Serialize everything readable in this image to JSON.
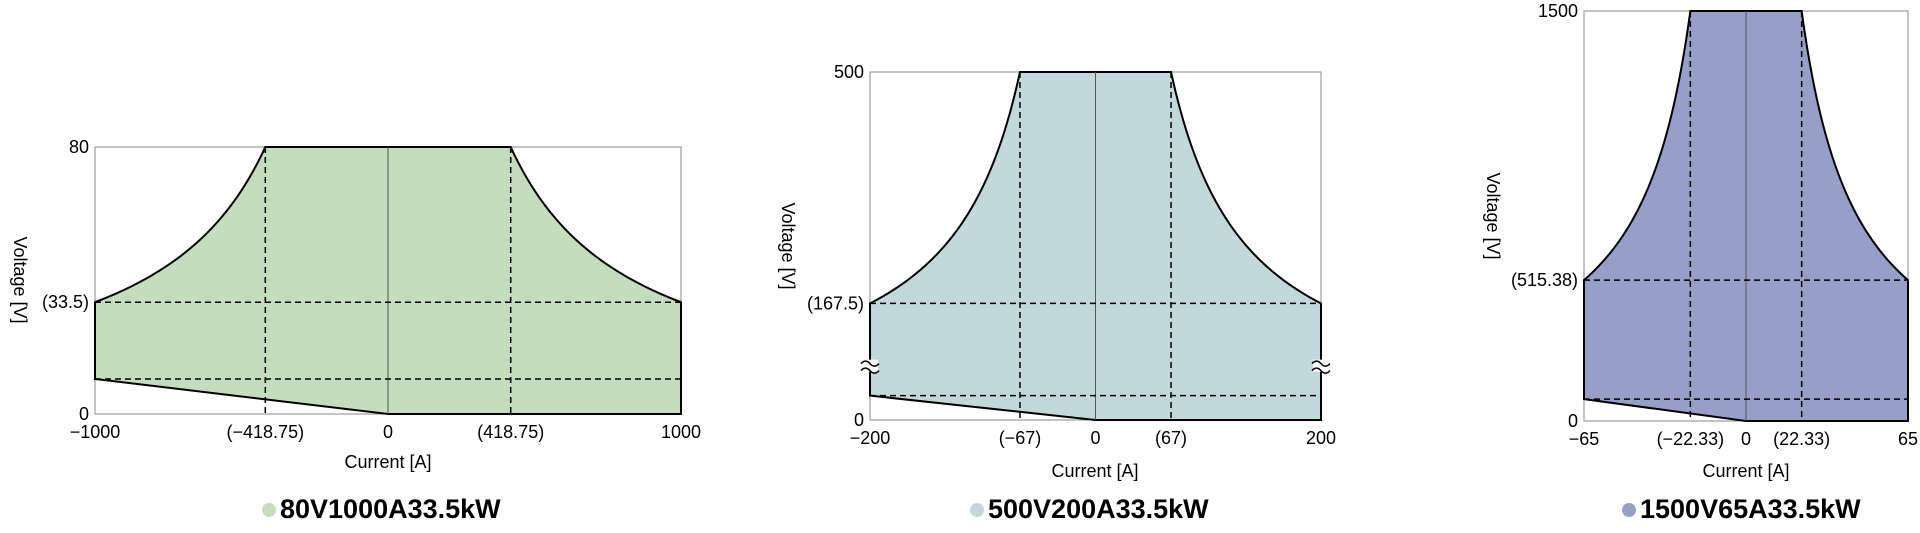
{
  "chart_data": [
    {
      "type": "area",
      "title": "80V1000A33.5kW",
      "color": "#c5ddbc",
      "xlabel": "Current [A]",
      "ylabel": "Voltage [V]",
      "xlim": [
        -1000,
        1000
      ],
      "ylim": [
        0,
        80
      ],
      "rated_power_kw": 33.5,
      "x_tick_labels": [
        "−1000",
        "(−418.75)",
        "0",
        "(418.75)",
        "1000"
      ],
      "x_ticks": [
        -1000,
        -418.75,
        0,
        418.75,
        1000
      ],
      "y_tick_labels": [
        "0",
        "(33.5)",
        "80"
      ],
      "y_ticks": [
        0,
        33.5,
        80
      ],
      "lower_boundary": [
        [
          -1000,
          10.5
        ],
        [
          0,
          0
        ]
      ],
      "lower_dashed_y": 10.5,
      "axis_break": false
    },
    {
      "type": "area",
      "title": "500V200A33.5kW",
      "color": "#c2d9dc",
      "xlabel": "Current [A]",
      "ylabel": "Voltage [V]",
      "xlim": [
        -200,
        200
      ],
      "ylim": [
        0,
        500
      ],
      "rated_power_kw": 33.5,
      "x_tick_labels": [
        "−200",
        "(−67)",
        "0",
        "(67)",
        "200"
      ],
      "x_ticks": [
        -200,
        -67,
        0,
        67,
        200
      ],
      "y_tick_labels": [
        "0",
        "(167.5)",
        "500"
      ],
      "y_ticks": [
        0,
        167.5,
        500
      ],
      "lower_boundary": [
        [
          -200,
          35
        ],
        [
          0,
          0
        ]
      ],
      "lower_dashed_y": 35,
      "axis_break": true
    },
    {
      "type": "area",
      "title": "1500V65A33.5kW",
      "color": "#979fc9",
      "xlabel": "Current [A]",
      "ylabel": "Voltage [V]",
      "xlim": [
        -65,
        65
      ],
      "ylim": [
        0,
        1500
      ],
      "rated_power_kw": 33.5,
      "x_tick_labels": [
        "−65",
        "(−22.33)",
        "0",
        "(22.33)",
        "65"
      ],
      "x_ticks": [
        -65,
        -22.33,
        0,
        22.33,
        65
      ],
      "y_tick_labels": [
        "0",
        "(515.38)",
        "1500"
      ],
      "y_ticks": [
        0,
        515.38,
        1500
      ],
      "lower_boundary": [
        [
          -65,
          80
        ],
        [
          0,
          0
        ]
      ],
      "lower_dashed_y": 80,
      "axis_break": false
    }
  ]
}
